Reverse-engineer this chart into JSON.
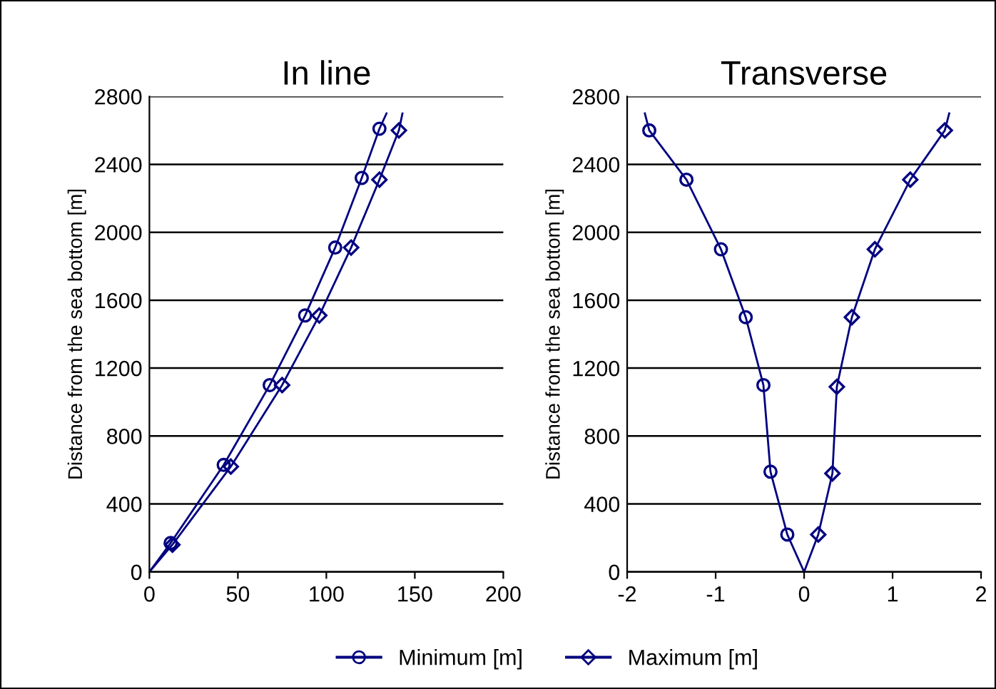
{
  "chart_data": [
    {
      "type": "line",
      "title": "In line",
      "ylabel": "Distance from the sea bottom [m]",
      "xlim": [
        0,
        200
      ],
      "xticks": [
        0,
        50,
        100,
        150,
        200
      ],
      "ylim": [
        0,
        2800
      ],
      "yticks": [
        0,
        400,
        800,
        1200,
        1600,
        2000,
        2400,
        2800
      ],
      "grid": "y",
      "legend": "bottom",
      "line_style": "solid",
      "series": [
        {
          "name": "Minimum [m]",
          "color": "#000080",
          "marker": "circle",
          "x": [
            0,
            12,
            42,
            68,
            88,
            105,
            120,
            130,
            134
          ],
          "values": [
            0,
            170,
            630,
            1100,
            1510,
            1910,
            2320,
            2610,
            2700
          ]
        },
        {
          "name": "Maximum [m]",
          "color": "#000080",
          "marker": "diamond",
          "x": [
            0,
            13,
            46,
            75,
            96,
            114,
            130,
            141,
            143
          ],
          "values": [
            0,
            160,
            620,
            1100,
            1510,
            1910,
            2310,
            2600,
            2700
          ]
        }
      ]
    },
    {
      "type": "line",
      "title": "Transverse",
      "ylabel": "Distance from the sea bottom [m]",
      "xlim": [
        -2,
        2
      ],
      "xticks": [
        -2,
        -1,
        0,
        1,
        2
      ],
      "ylim": [
        0,
        2800
      ],
      "yticks": [
        0,
        400,
        800,
        1200,
        1600,
        2000,
        2400,
        2800
      ],
      "grid": "y",
      "line_style": "solid",
      "series": [
        {
          "color": "#000080",
          "marker": "circle",
          "x": [
            0,
            -0.19,
            -0.38,
            -0.46,
            -0.66,
            -0.94,
            -1.33,
            -1.75,
            -1.8
          ],
          "values": [
            0,
            220,
            590,
            1100,
            1500,
            1900,
            2310,
            2600,
            2700
          ]
        },
        {
          "color": "#000080",
          "marker": "diamond",
          "x": [
            0,
            0.16,
            0.32,
            0.37,
            0.54,
            0.8,
            1.2,
            1.59,
            1.64
          ],
          "values": [
            0,
            220,
            580,
            1090,
            1500,
            1900,
            2310,
            2600,
            2700
          ]
        }
      ]
    }
  ]
}
